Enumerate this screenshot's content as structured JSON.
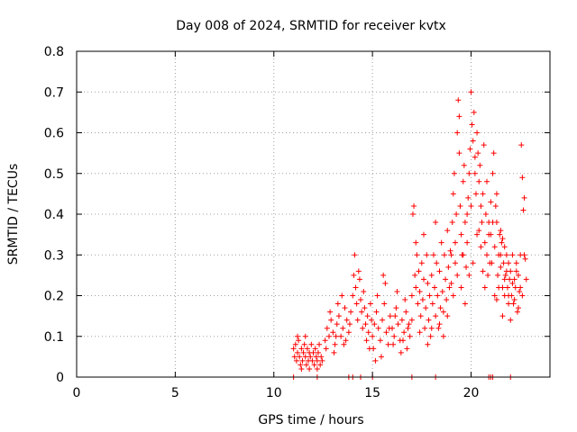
{
  "chart_data": {
    "type": "scatter",
    "title": "Day 008 of 2024, SRMTID for receiver kvtx",
    "xlabel": "GPS time / hours",
    "ylabel": "SRMTID / TECUs",
    "xlim": [
      0,
      24
    ],
    "ylim": [
      0,
      0.8
    ],
    "x_ticks": [
      0,
      5,
      10,
      15,
      20
    ],
    "x_tick_labels": [
      "0",
      "5",
      "10",
      "15",
      "20"
    ],
    "y_ticks": [
      0,
      0.1,
      0.2,
      0.3,
      0.4,
      0.5,
      0.6,
      0.7,
      0.8
    ],
    "y_tick_labels": [
      "0",
      "0.1",
      "0.2",
      "0.3",
      "0.4",
      "0.5",
      "0.6",
      "0.7",
      "0.8"
    ],
    "grid": true,
    "marker": "+",
    "color": "#ff0000",
    "series": [
      {
        "name": "SRMTID",
        "points": [
          [
            11.0,
            0.07
          ],
          [
            11.05,
            0.05
          ],
          [
            11.1,
            0.08
          ],
          [
            11.15,
            0.04
          ],
          [
            11.2,
            0.06
          ],
          [
            11.25,
            0.09
          ],
          [
            11.3,
            0.05
          ],
          [
            11.35,
            0.03
          ],
          [
            11.4,
            0.07
          ],
          [
            11.45,
            0.04
          ],
          [
            11.5,
            0.06
          ],
          [
            11.55,
            0.08
          ],
          [
            11.6,
            0.05
          ],
          [
            11.65,
            0.03
          ],
          [
            11.7,
            0.07
          ],
          [
            11.75,
            0.04
          ],
          [
            11.8,
            0.06
          ],
          [
            11.85,
            0.05
          ],
          [
            11.9,
            0.08
          ],
          [
            11.95,
            0.04
          ],
          [
            12.0,
            0.06
          ],
          [
            12.05,
            0.03
          ],
          [
            12.1,
            0.07
          ],
          [
            12.15,
            0.05
          ],
          [
            12.2,
            0.04
          ],
          [
            12.25,
            0.06
          ],
          [
            12.3,
            0.08
          ],
          [
            12.35,
            0.03
          ],
          [
            12.4,
            0.05
          ],
          [
            12.45,
            0.04
          ],
          [
            11.2,
            0.1
          ],
          [
            11.6,
            0.1
          ],
          [
            12.2,
            0.02
          ],
          [
            11.4,
            0.02
          ],
          [
            11.8,
            0.02
          ],
          [
            12.6,
            0.09
          ],
          [
            12.7,
            0.12
          ],
          [
            12.8,
            0.1
          ],
          [
            12.9,
            0.14
          ],
          [
            13.0,
            0.11
          ],
          [
            13.1,
            0.08
          ],
          [
            13.2,
            0.13
          ],
          [
            13.3,
            0.15
          ],
          [
            13.4,
            0.1
          ],
          [
            13.5,
            0.12
          ],
          [
            13.6,
            0.17
          ],
          [
            13.7,
            0.14
          ],
          [
            13.8,
            0.11
          ],
          [
            13.9,
            0.16
          ],
          [
            12.65,
            0.07
          ],
          [
            12.85,
            0.16
          ],
          [
            13.05,
            0.06
          ],
          [
            13.25,
            0.18
          ],
          [
            13.45,
            0.2
          ],
          [
            13.65,
            0.09
          ],
          [
            13.85,
            0.13
          ],
          [
            13.15,
            0.1
          ],
          [
            13.55,
            0.08
          ],
          [
            14.0,
            0.2
          ],
          [
            14.05,
            0.25
          ],
          [
            14.1,
            0.3
          ],
          [
            14.15,
            0.22
          ],
          [
            14.2,
            0.18
          ],
          [
            14.25,
            0.14
          ],
          [
            14.3,
            0.26
          ],
          [
            14.35,
            0.24
          ],
          [
            14.4,
            0.19
          ],
          [
            14.45,
            0.16
          ],
          [
            14.5,
            0.12
          ],
          [
            14.55,
            0.21
          ],
          [
            14.6,
            0.17
          ],
          [
            14.65,
            0.13
          ],
          [
            14.7,
            0.09
          ],
          [
            14.75,
            0.15
          ],
          [
            14.8,
            0.11
          ],
          [
            14.85,
            0.07
          ],
          [
            14.9,
            0.18
          ],
          [
            14.95,
            0.14
          ],
          [
            15.0,
            0.1
          ],
          [
            15.1,
            0.13
          ],
          [
            15.2,
            0.16
          ],
          [
            15.3,
            0.12
          ],
          [
            15.4,
            0.09
          ],
          [
            15.5,
            0.14
          ],
          [
            15.6,
            0.18
          ],
          [
            15.7,
            0.11
          ],
          [
            15.8,
            0.08
          ],
          [
            15.9,
            0.15
          ],
          [
            16.0,
            0.12
          ],
          [
            16.1,
            0.1
          ],
          [
            16.2,
            0.17
          ],
          [
            16.3,
            0.13
          ],
          [
            16.4,
            0.09
          ],
          [
            16.5,
            0.14
          ],
          [
            16.6,
            0.11
          ],
          [
            16.7,
            0.16
          ],
          [
            16.8,
            0.12
          ],
          [
            16.9,
            0.1
          ],
          [
            15.05,
            0.07
          ],
          [
            15.25,
            0.2
          ],
          [
            15.45,
            0.05
          ],
          [
            15.65,
            0.23
          ],
          [
            15.85,
            0.12
          ],
          [
            16.05,
            0.08
          ],
          [
            16.25,
            0.21
          ],
          [
            16.45,
            0.06
          ],
          [
            16.65,
            0.19
          ],
          [
            16.85,
            0.13
          ],
          [
            15.15,
            0.04
          ],
          [
            15.55,
            0.25
          ],
          [
            16.15,
            0.15
          ],
          [
            16.55,
            0.09
          ],
          [
            16.75,
            0.07
          ],
          [
            17.0,
            0.2
          ],
          [
            17.05,
            0.4
          ],
          [
            17.1,
            0.42
          ],
          [
            17.15,
            0.25
          ],
          [
            17.2,
            0.22
          ],
          [
            17.25,
            0.3
          ],
          [
            17.3,
            0.18
          ],
          [
            17.35,
            0.26
          ],
          [
            17.4,
            0.21
          ],
          [
            17.45,
            0.15
          ],
          [
            17.5,
            0.28
          ],
          [
            17.55,
            0.19
          ],
          [
            17.6,
            0.24
          ],
          [
            17.65,
            0.12
          ],
          [
            17.7,
            0.17
          ],
          [
            17.75,
            0.3
          ],
          [
            17.8,
            0.23
          ],
          [
            17.85,
            0.14
          ],
          [
            17.9,
            0.2
          ],
          [
            17.95,
            0.1
          ],
          [
            18.0,
            0.25
          ],
          [
            18.05,
            0.18
          ],
          [
            18.1,
            0.3
          ],
          [
            18.15,
            0.22
          ],
          [
            18.2,
            0.15
          ],
          [
            18.25,
            0.28
          ],
          [
            18.3,
            0.2
          ],
          [
            18.35,
            0.12
          ],
          [
            18.4,
            0.26
          ],
          [
            18.45,
            0.17
          ],
          [
            18.5,
            0.33
          ],
          [
            18.55,
            0.21
          ],
          [
            18.6,
            0.16
          ],
          [
            18.65,
            0.3
          ],
          [
            18.7,
            0.24
          ],
          [
            18.75,
            0.19
          ],
          [
            18.8,
            0.36
          ],
          [
            18.85,
            0.27
          ],
          [
            18.9,
            0.22
          ],
          [
            18.95,
            0.31
          ],
          [
            17.2,
            0.33
          ],
          [
            17.6,
            0.35
          ],
          [
            18.2,
            0.38
          ],
          [
            18.6,
            0.1
          ],
          [
            17.8,
            0.08
          ],
          [
            18.4,
            0.13
          ],
          [
            17.4,
            0.11
          ],
          [
            18.8,
            0.15
          ],
          [
            18.0,
            0.12
          ],
          [
            17.0,
            0.14
          ],
          [
            19.0,
            0.3
          ],
          [
            19.05,
            0.38
          ],
          [
            19.1,
            0.45
          ],
          [
            19.15,
            0.5
          ],
          [
            19.2,
            0.33
          ],
          [
            19.25,
            0.4
          ],
          [
            19.3,
            0.6
          ],
          [
            19.35,
            0.68
          ],
          [
            19.4,
            0.55
          ],
          [
            19.45,
            0.42
          ],
          [
            19.5,
            0.35
          ],
          [
            19.55,
            0.3
          ],
          [
            19.6,
            0.48
          ],
          [
            19.65,
            0.52
          ],
          [
            19.7,
            0.38
          ],
          [
            19.75,
            0.27
          ],
          [
            19.8,
            0.33
          ],
          [
            19.85,
            0.44
          ],
          [
            19.9,
            0.5
          ],
          [
            19.95,
            0.56
          ],
          [
            20.0,
            0.7
          ],
          [
            20.05,
            0.62
          ],
          [
            20.1,
            0.58
          ],
          [
            20.15,
            0.65
          ],
          [
            20.2,
            0.5
          ],
          [
            20.25,
            0.45
          ],
          [
            20.3,
            0.6
          ],
          [
            20.35,
            0.55
          ],
          [
            20.4,
            0.48
          ],
          [
            20.45,
            0.52
          ],
          [
            20.5,
            0.42
          ],
          [
            20.55,
            0.38
          ],
          [
            20.6,
            0.45
          ],
          [
            20.65,
            0.57
          ],
          [
            20.7,
            0.33
          ],
          [
            20.75,
            0.4
          ],
          [
            20.8,
            0.3
          ],
          [
            20.85,
            0.25
          ],
          [
            20.9,
            0.35
          ],
          [
            20.95,
            0.28
          ],
          [
            19.1,
            0.2
          ],
          [
            19.3,
            0.25
          ],
          [
            19.5,
            0.22
          ],
          [
            19.7,
            0.18
          ],
          [
            19.9,
            0.25
          ],
          [
            20.1,
            0.28
          ],
          [
            20.3,
            0.35
          ],
          [
            20.5,
            0.32
          ],
          [
            20.7,
            0.22
          ],
          [
            20.9,
            0.38
          ],
          [
            19.2,
            0.28
          ],
          [
            19.6,
            0.3
          ],
          [
            20.0,
            0.42
          ],
          [
            20.4,
            0.36
          ],
          [
            20.8,
            0.48
          ],
          [
            19.4,
            0.64
          ],
          [
            19.8,
            0.4
          ],
          [
            20.2,
            0.54
          ],
          [
            20.6,
            0.26
          ],
          [
            19.0,
            0.23
          ],
          [
            21.0,
            0.35
          ],
          [
            21.05,
            0.28
          ],
          [
            21.1,
            0.5
          ],
          [
            21.15,
            0.55
          ],
          [
            21.2,
            0.32
          ],
          [
            21.25,
            0.42
          ],
          [
            21.3,
            0.38
          ],
          [
            21.35,
            0.25
          ],
          [
            21.4,
            0.3
          ],
          [
            21.45,
            0.35
          ],
          [
            21.5,
            0.27
          ],
          [
            21.55,
            0.33
          ],
          [
            21.6,
            0.22
          ],
          [
            21.65,
            0.28
          ],
          [
            21.7,
            0.2
          ],
          [
            21.75,
            0.25
          ],
          [
            21.8,
            0.3
          ],
          [
            21.85,
            0.22
          ],
          [
            21.9,
            0.18
          ],
          [
            21.95,
            0.24
          ],
          [
            22.0,
            0.26
          ],
          [
            22.05,
            0.2
          ],
          [
            22.1,
            0.3
          ],
          [
            22.15,
            0.18
          ],
          [
            22.2,
            0.24
          ],
          [
            22.25,
            0.22
          ],
          [
            22.3,
            0.28
          ],
          [
            22.35,
            0.16
          ],
          [
            22.4,
            0.25
          ],
          [
            22.45,
            0.21
          ],
          [
            22.5,
            0.3
          ],
          [
            22.55,
            0.57
          ],
          [
            22.6,
            0.49
          ],
          [
            22.65,
            0.41
          ],
          [
            22.7,
            0.44
          ],
          [
            22.75,
            0.29
          ],
          [
            22.8,
            0.24
          ],
          [
            22.6,
            0.2
          ],
          [
            22.4,
            0.17
          ],
          [
            22.2,
            0.19
          ],
          [
            21.2,
            0.2
          ],
          [
            21.4,
            0.22
          ],
          [
            21.6,
            0.15
          ],
          [
            21.8,
            0.26
          ],
          [
            22.0,
            0.14
          ],
          [
            21.3,
            0.19
          ],
          [
            21.5,
            0.3
          ],
          [
            21.7,
            0.24
          ],
          [
            21.9,
            0.28
          ],
          [
            22.1,
            0.23
          ],
          [
            21.1,
            0.38
          ],
          [
            21.3,
            0.45
          ],
          [
            21.5,
            0.36
          ],
          [
            21.7,
            0.32
          ],
          [
            21.9,
            0.2
          ],
          [
            22.3,
            0.26
          ],
          [
            22.5,
            0.22
          ],
          [
            22.7,
            0.3
          ],
          [
            21.0,
            0.43
          ],
          [
            21.6,
            0.34
          ],
          [
            11.0,
            0.0
          ],
          [
            12.2,
            0.0
          ],
          [
            13.8,
            0.0
          ],
          [
            14.0,
            0.0
          ],
          [
            14.4,
            0.0
          ],
          [
            15.0,
            0.0
          ],
          [
            17.0,
            0.0
          ],
          [
            18.2,
            0.0
          ],
          [
            20.9,
            0.0
          ],
          [
            21.0,
            0.0
          ],
          [
            21.1,
            0.0
          ],
          [
            22.0,
            0.0
          ]
        ]
      }
    ]
  }
}
